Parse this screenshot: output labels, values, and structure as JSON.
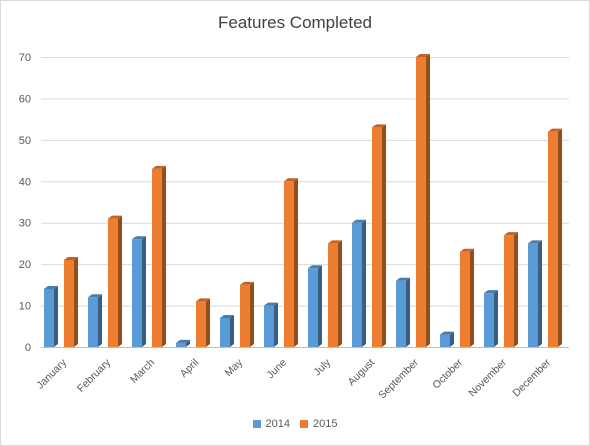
{
  "chart_data": {
    "type": "bar",
    "title": "Features Completed",
    "categories": [
      "January",
      "February",
      "March",
      "April",
      "May",
      "June",
      "July",
      "August",
      "September",
      "October",
      "November",
      "December"
    ],
    "series": [
      {
        "name": "2014",
        "color": "#5b9bd5",
        "values": [
          14,
          12,
          26,
          1,
          7,
          10,
          19,
          30,
          16,
          3,
          13,
          25
        ]
      },
      {
        "name": "2015",
        "color": "#ed7d31",
        "values": [
          21,
          31,
          43,
          11,
          15,
          40,
          25,
          53,
          70,
          23,
          27,
          52
        ]
      }
    ],
    "ylim": [
      0,
      70
    ],
    "yticks": [
      0,
      10,
      20,
      30,
      40,
      50,
      60,
      70
    ],
    "grid": true,
    "legend_position": "bottom",
    "style": "3d-clustered-column"
  }
}
